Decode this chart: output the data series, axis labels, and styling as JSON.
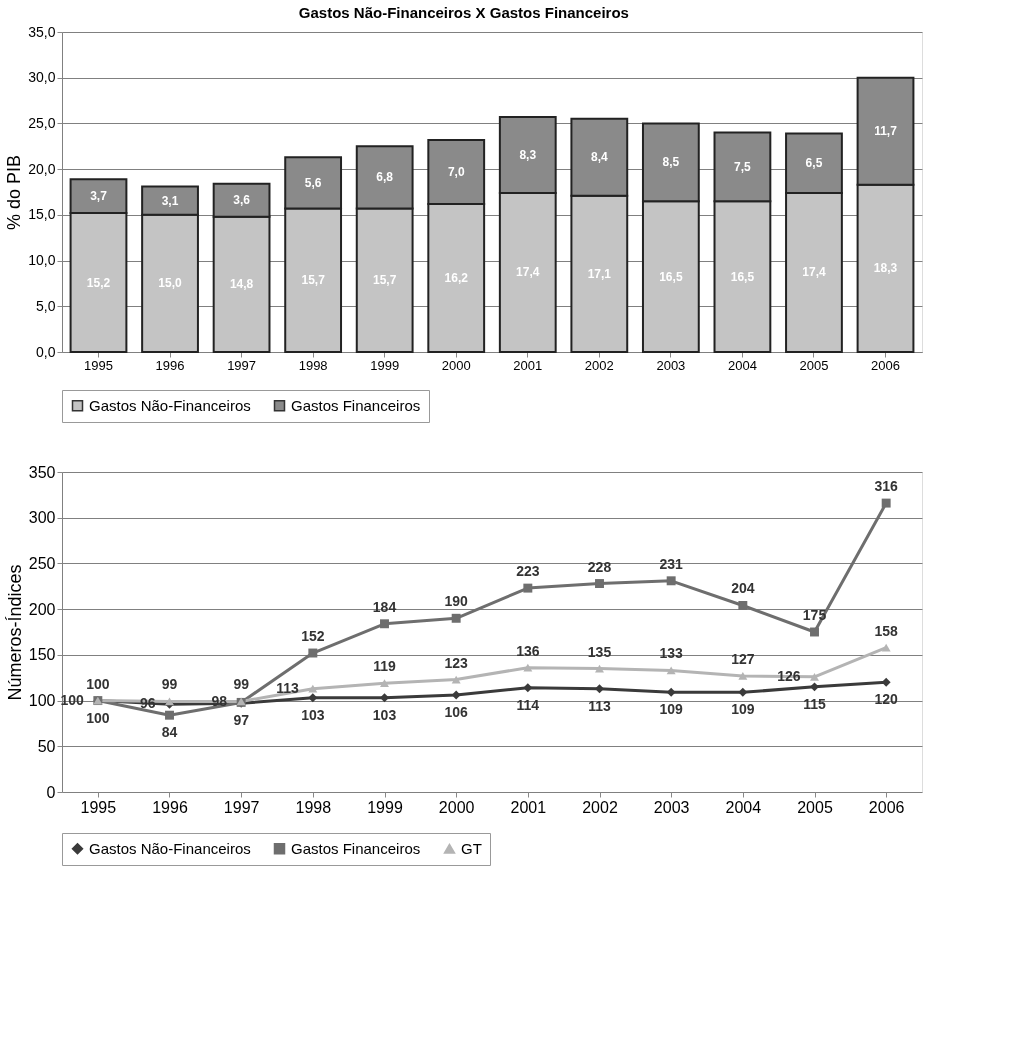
{
  "chart_data": [
    {
      "type": "bar",
      "title": "Gastos Não-Financeiros X Gastos Financeiros",
      "ylabel": "% do PIB",
      "stacked": true,
      "categories": [
        "1995",
        "1996",
        "1997",
        "1998",
        "1999",
        "2000",
        "2001",
        "2002",
        "2003",
        "2004",
        "2005",
        "2006"
      ],
      "series": [
        {
          "name": "Gastos Não-Financeiros",
          "color": "#c4c4c4",
          "values": [
            15.2,
            15.0,
            14.8,
            15.7,
            15.7,
            16.2,
            17.4,
            17.1,
            16.5,
            16.5,
            17.4,
            18.3
          ],
          "value_labels": [
            "15,2",
            "15,0",
            "14,8",
            "15,7",
            "15,7",
            "16,2",
            "17,4",
            "17,1",
            "16,5",
            "16,5",
            "17,4",
            "18,3"
          ]
        },
        {
          "name": "Gastos Financeiros",
          "color": "#8a8a8a",
          "values": [
            3.7,
            3.1,
            3.6,
            5.6,
            6.8,
            7.0,
            8.3,
            8.4,
            8.5,
            7.5,
            6.5,
            11.7
          ],
          "value_labels": [
            "3,7",
            "3,1",
            "3,6",
            "5,6",
            "6,8",
            "7,0",
            "8,3",
            "8,4",
            "8,5",
            "7,5",
            "6,5",
            "11,7"
          ]
        }
      ],
      "ylim": [
        0,
        35
      ],
      "yticks": [
        {
          "value": 0,
          "label": "0,0"
        },
        {
          "value": 5,
          "label": "5,0"
        },
        {
          "value": 10,
          "label": "10,0"
        },
        {
          "value": 15,
          "label": "15,0"
        },
        {
          "value": 20,
          "label": "20,0"
        },
        {
          "value": 25,
          "label": "25,0"
        },
        {
          "value": 30,
          "label": "30,0"
        },
        {
          "value": 35,
          "label": "35,0"
        }
      ],
      "grid": "y",
      "legend": "bottom"
    },
    {
      "type": "line",
      "ylabel": "Números-Índices",
      "data_labels": true,
      "categories": [
        "1995",
        "1996",
        "1997",
        "1998",
        "1999",
        "2000",
        "2001",
        "2002",
        "2003",
        "2004",
        "2005",
        "2006"
      ],
      "series": [
        {
          "name": "Gastos Não-Financeiros",
          "color": "#3a3a3a",
          "marker": "diamond",
          "values": [
            100,
            96,
            97,
            103,
            103,
            106,
            114,
            113,
            109,
            109,
            115,
            120
          ]
        },
        {
          "name": "Gastos Financeiros",
          "color": "#6e6e6e",
          "marker": "square",
          "values": [
            100,
            84,
            98,
            152,
            184,
            190,
            223,
            228,
            231,
            204,
            175,
            316
          ]
        },
        {
          "name": "GT",
          "color": "#b4b4b4",
          "marker": "triangle",
          "values": [
            100,
            99,
            99,
            113,
            119,
            123,
            136,
            135,
            133,
            127,
            126,
            158
          ]
        }
      ],
      "ylim": [
        0,
        350
      ],
      "yticks": [
        0,
        50,
        100,
        150,
        200,
        250,
        300,
        350
      ],
      "grid": "y",
      "legend": "bottom",
      "line_style": "solid"
    }
  ]
}
